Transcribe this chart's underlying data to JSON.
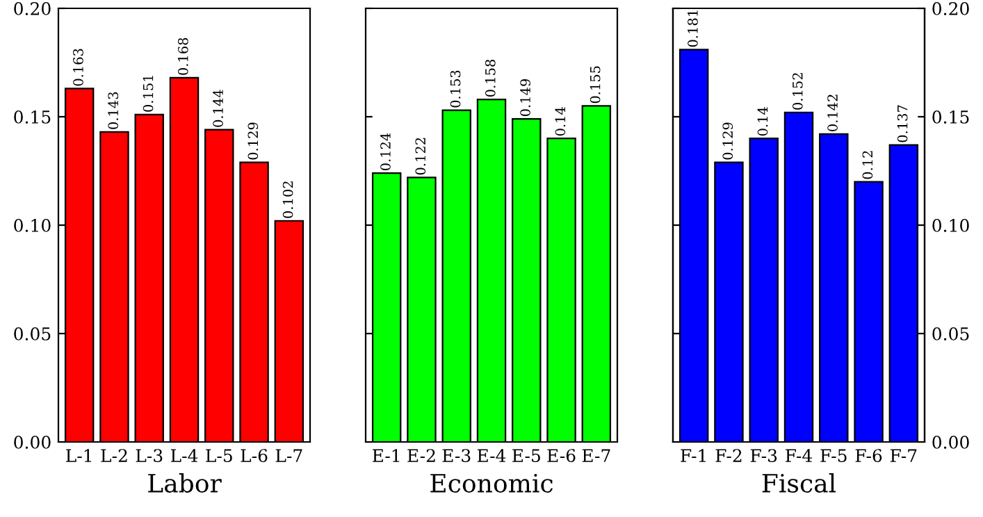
{
  "chart_data": [
    {
      "type": "bar",
      "xlabel": "Labor",
      "categories": [
        "L-1",
        "L-2",
        "L-3",
        "L-4",
        "L-5",
        "L-6",
        "L-7"
      ],
      "series": [
        {
          "color": "#ff0000",
          "values": [
            0.163,
            0.143,
            0.151,
            0.168,
            0.144,
            0.129,
            0.102
          ]
        }
      ],
      "ylim": [
        0,
        0.2
      ],
      "yticks": [
        {
          "value": 0,
          "label": "0.00"
        },
        {
          "value": 0.05,
          "label": "0.05"
        },
        {
          "value": 0.1,
          "label": "0.10"
        },
        {
          "value": 0.15,
          "label": "0.15"
        },
        {
          "value": 0.2,
          "label": "0.20"
        }
      ],
      "data_labels": true,
      "grid": false,
      "legend": false
    },
    {
      "type": "bar",
      "xlabel": "Economic",
      "categories": [
        "E-1",
        "E-2",
        "E-3",
        "E-4",
        "E-5",
        "E-6",
        "E-7"
      ],
      "series": [
        {
          "color": "#00ff00",
          "values": [
            0.124,
            0.122,
            0.153,
            0.158,
            0.149,
            0.14,
            0.155
          ]
        }
      ],
      "ylim": [
        0,
        0.2
      ],
      "yticks": [
        {
          "value": 0,
          "label": null
        },
        {
          "value": 0.05,
          "label": null
        },
        {
          "value": 0.1,
          "label": null
        },
        {
          "value": 0.15,
          "label": null
        },
        {
          "value": 0.2,
          "label": null
        }
      ],
      "tick_labels": "x",
      "data_labels": true,
      "grid": false,
      "legend": false
    },
    {
      "type": "bar",
      "xlabel": "Fiscal",
      "categories": [
        "F-1",
        "F-2",
        "F-3",
        "F-4",
        "F-5",
        "F-6",
        "F-7"
      ],
      "series": [
        {
          "color": "#0000ff",
          "values": [
            0.181,
            0.129,
            0.14,
            0.152,
            0.142,
            0.12,
            0.137
          ],
          "axis": "y2"
        }
      ],
      "y2lim": [
        0,
        0.2
      ],
      "y2ticks": [
        {
          "value": 0,
          "label": "0.00"
        },
        {
          "value": 0.05,
          "label": "0.05"
        },
        {
          "value": 0.1,
          "label": "0.10"
        },
        {
          "value": 0.15,
          "label": "0.15"
        },
        {
          "value": 0.2,
          "label": "0.20"
        }
      ],
      "data_labels": true,
      "grid": false,
      "legend": false
    }
  ]
}
